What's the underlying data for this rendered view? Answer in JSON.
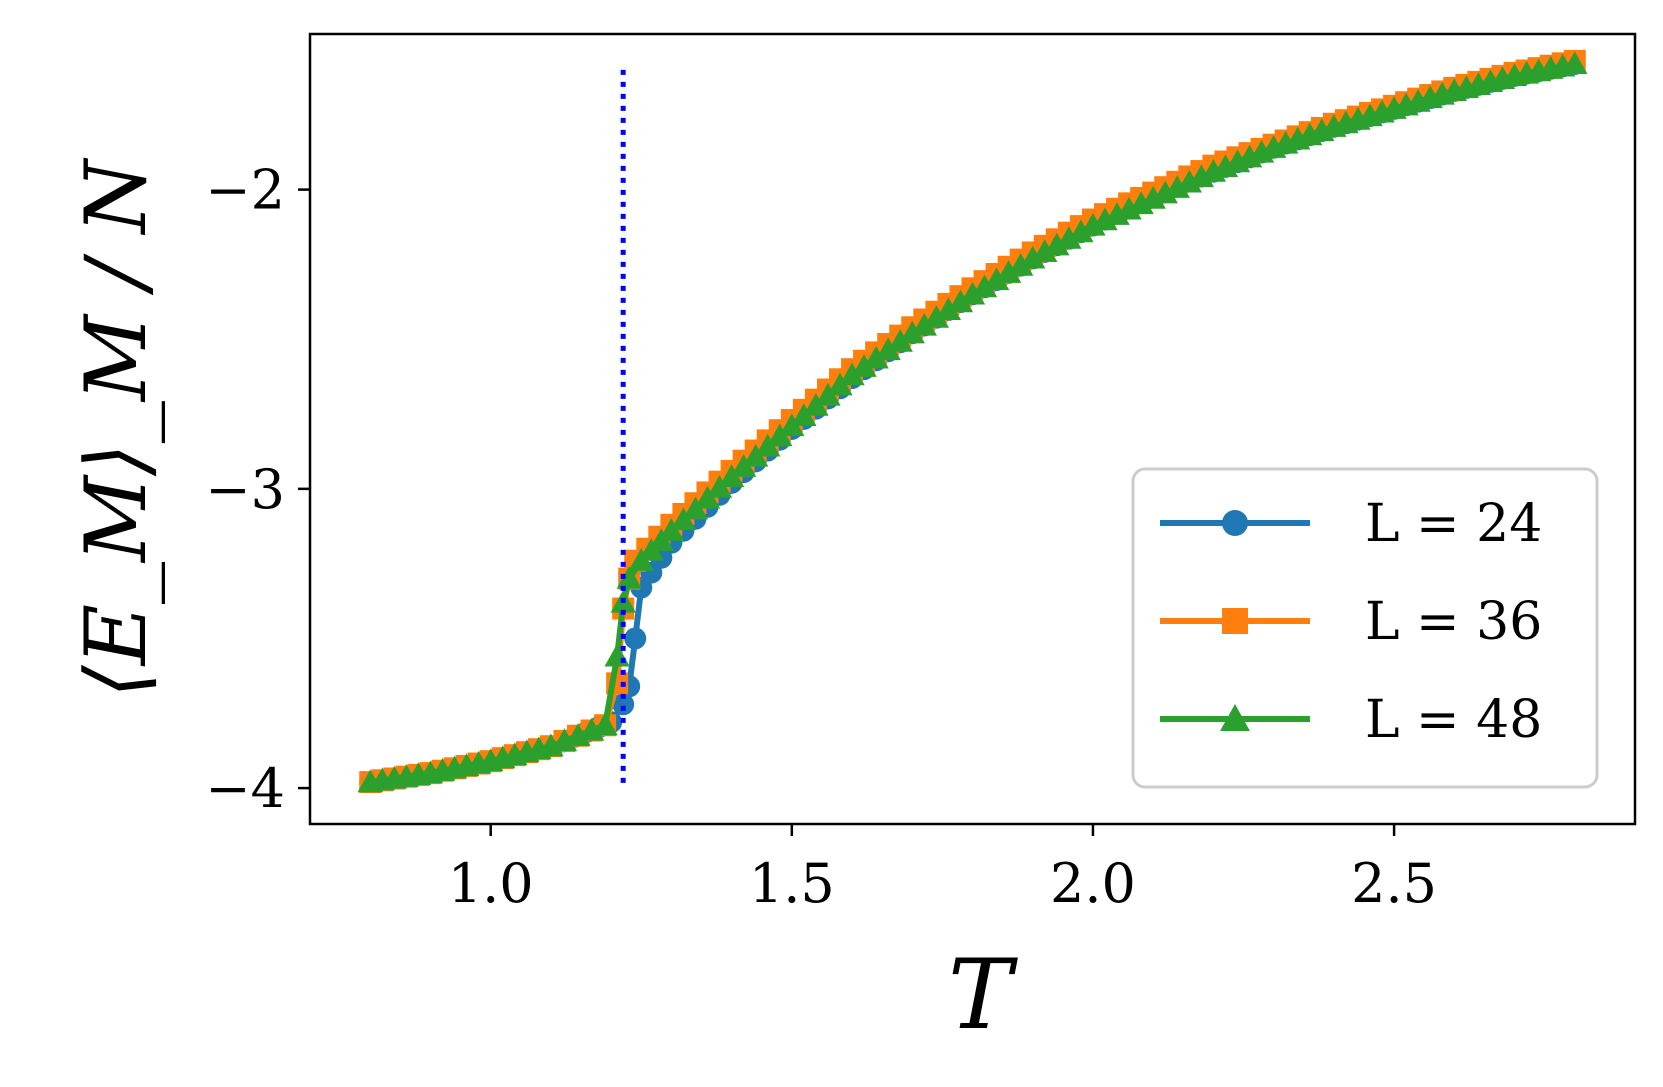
{
  "chart_data": {
    "type": "line",
    "title": "",
    "xlabel": "T",
    "ylabel": "⟨E_M⟩_M / N",
    "xlim": [
      0.7,
      2.9
    ],
    "ylim": [
      -4.12,
      -1.48
    ],
    "xticks": [
      1.0,
      1.5,
      2.0,
      2.5
    ],
    "xtick_labels": [
      "1.0",
      "1.5",
      "2.0",
      "2.5"
    ],
    "yticks": [
      -4,
      -3,
      -2
    ],
    "ytick_labels": [
      "−4",
      "−3",
      "−2"
    ],
    "grid": false,
    "legend_position": "lower-right",
    "critical_line": {
      "x": 1.22,
      "y_range": [
        -4.0,
        -1.6
      ],
      "color": "#0000ff",
      "style": "dotted"
    },
    "series": [
      {
        "name": "L = 24",
        "color": "#1f77b4",
        "marker": "circle",
        "x": [
          0.8,
          0.9,
          1.0,
          1.1,
          1.2,
          1.22,
          1.23,
          1.24,
          1.25,
          1.3,
          1.4,
          1.5,
          1.6,
          1.7,
          1.8,
          1.9,
          2.0,
          2.1,
          2.2,
          2.3,
          2.4,
          2.5,
          2.6,
          2.7,
          2.8
        ],
        "y": [
          -3.98,
          -3.95,
          -3.91,
          -3.86,
          -3.78,
          -3.72,
          -3.66,
          -3.5,
          -3.33,
          -3.18,
          -2.98,
          -2.8,
          -2.63,
          -2.48,
          -2.35,
          -2.23,
          -2.12,
          -2.02,
          -1.94,
          -1.86,
          -1.79,
          -1.73,
          -1.67,
          -1.62,
          -1.58
        ]
      },
      {
        "name": "L = 36",
        "color": "#ff7f0e",
        "marker": "square",
        "x": [
          0.8,
          0.9,
          1.0,
          1.1,
          1.19,
          1.21,
          1.22,
          1.23,
          1.24,
          1.3,
          1.4,
          1.5,
          1.6,
          1.7,
          1.8,
          1.9,
          2.0,
          2.1,
          2.2,
          2.3,
          2.4,
          2.5,
          2.6,
          2.7,
          2.8
        ],
        "y": [
          -3.98,
          -3.95,
          -3.91,
          -3.86,
          -3.79,
          -3.65,
          -3.4,
          -3.3,
          -3.24,
          -3.12,
          -2.94,
          -2.77,
          -2.6,
          -2.46,
          -2.33,
          -2.21,
          -2.1,
          -2.01,
          -1.92,
          -1.85,
          -1.78,
          -1.72,
          -1.66,
          -1.61,
          -1.57
        ]
      },
      {
        "name": "L = 48",
        "color": "#2ca02c",
        "marker": "triangle",
        "x": [
          0.8,
          0.9,
          1.0,
          1.1,
          1.19,
          1.21,
          1.22,
          1.23,
          1.25,
          1.3,
          1.4,
          1.5,
          1.6,
          1.7,
          1.8,
          1.9,
          2.0,
          2.1,
          2.2,
          2.3,
          2.4,
          2.5,
          2.6,
          2.7,
          2.8
        ],
        "y": [
          -3.98,
          -3.95,
          -3.91,
          -3.86,
          -3.79,
          -3.56,
          -3.38,
          -3.3,
          -3.24,
          -3.14,
          -2.96,
          -2.79,
          -2.62,
          -2.48,
          -2.35,
          -2.23,
          -2.12,
          -2.03,
          -1.94,
          -1.86,
          -1.79,
          -1.73,
          -1.67,
          -1.62,
          -1.58
        ]
      }
    ],
    "legend": {
      "entries": [
        {
          "label": "L = 24"
        },
        {
          "label": "L = 36"
        },
        {
          "label": "L = 48"
        }
      ]
    }
  }
}
